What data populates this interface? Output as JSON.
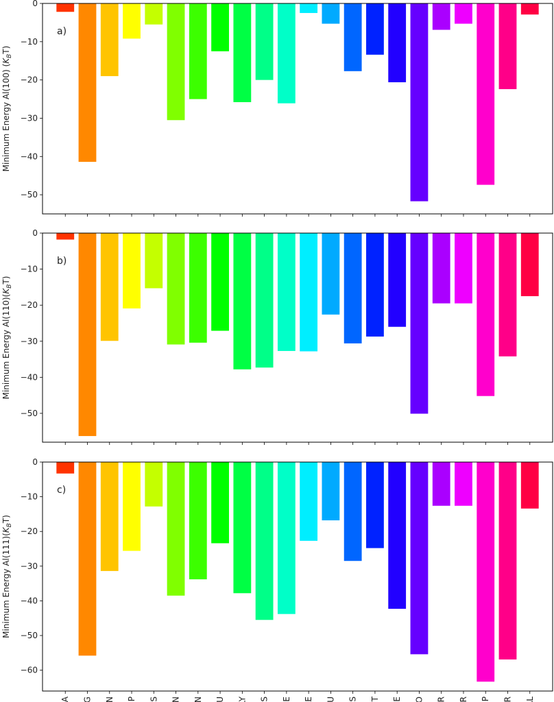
{
  "chart_data": {
    "type": "bar",
    "categories": [
      "ALA",
      "ARG",
      "ASN",
      "ASP",
      "CYS",
      "GAN",
      "GLN",
      "GLU",
      "GLY",
      "HIS",
      "HIE",
      "ILE",
      "LEU",
      "LYS",
      "MET",
      "PHE",
      "PRO",
      "SER",
      "THR",
      "TRP",
      "TYR",
      "VAL"
    ],
    "colors": [
      "#ff3300",
      "#ff8800",
      "#ffc400",
      "#ffff00",
      "#c4ff00",
      "#80ff00",
      "#3cff00",
      "#00ff00",
      "#00ff44",
      "#00ff88",
      "#00ffc8",
      "#00eeff",
      "#00aaff",
      "#0066ff",
      "#0022ff",
      "#2200ff",
      "#6600ff",
      "#aa00ff",
      "#ee00ff",
      "#ff00cc",
      "#ff0088",
      "#ff0044"
    ],
    "panels": [
      {
        "label": "a)",
        "ylabel_main": "Minimum Energy Al(100) (",
        "ylabel_sub_k": "K",
        "ylabel_sub_b": "B",
        "ylabel_t": "T)",
        "ylim": [
          -55,
          0
        ],
        "yticks": [
          0,
          -10,
          -20,
          -30,
          -40,
          -50
        ],
        "values": [
          -2.2,
          -41.4,
          -19.0,
          -9.2,
          -5.5,
          -30.5,
          -25.0,
          -12.5,
          -25.8,
          -20.0,
          -26.1,
          -2.5,
          -5.3,
          -17.7,
          -13.4,
          -20.6,
          -51.7,
          -6.9,
          -5.3,
          -47.4,
          -22.4,
          -2.9
        ]
      },
      {
        "label": "b)",
        "ylabel_main": "Minimum Energy Al(110)(",
        "ylabel_sub_k": "K",
        "ylabel_sub_b": "B",
        "ylabel_t": "T)",
        "ylim": [
          -58,
          0
        ],
        "yticks": [
          0,
          -10,
          -20,
          -30,
          -40,
          -50
        ],
        "values": [
          -1.8,
          -56.3,
          -29.9,
          -20.9,
          -15.3,
          -30.9,
          -30.4,
          -27.1,
          -37.8,
          -37.3,
          -32.7,
          -32.8,
          -22.6,
          -30.6,
          -28.7,
          -26.0,
          -50.1,
          -19.5,
          -19.5,
          -45.2,
          -34.2,
          -17.5
        ]
      },
      {
        "label": "c)",
        "ylabel_main": "Minimum Energy Al(111)(",
        "ylabel_sub_k": "K",
        "ylabel_sub_b": "B",
        "ylabel_t": "T)",
        "ylim": [
          -66,
          0
        ],
        "yticks": [
          0,
          -10,
          -20,
          -30,
          -40,
          -50,
          -60
        ],
        "values": [
          -3.3,
          -55.8,
          -31.4,
          -25.6,
          -12.8,
          -38.5,
          -33.8,
          -23.4,
          -37.8,
          -45.5,
          -43.8,
          -22.7,
          -16.8,
          -28.5,
          -24.8,
          -42.3,
          -55.4,
          -12.6,
          -12.6,
          -63.3,
          -56.9,
          -13.4
        ]
      }
    ]
  }
}
